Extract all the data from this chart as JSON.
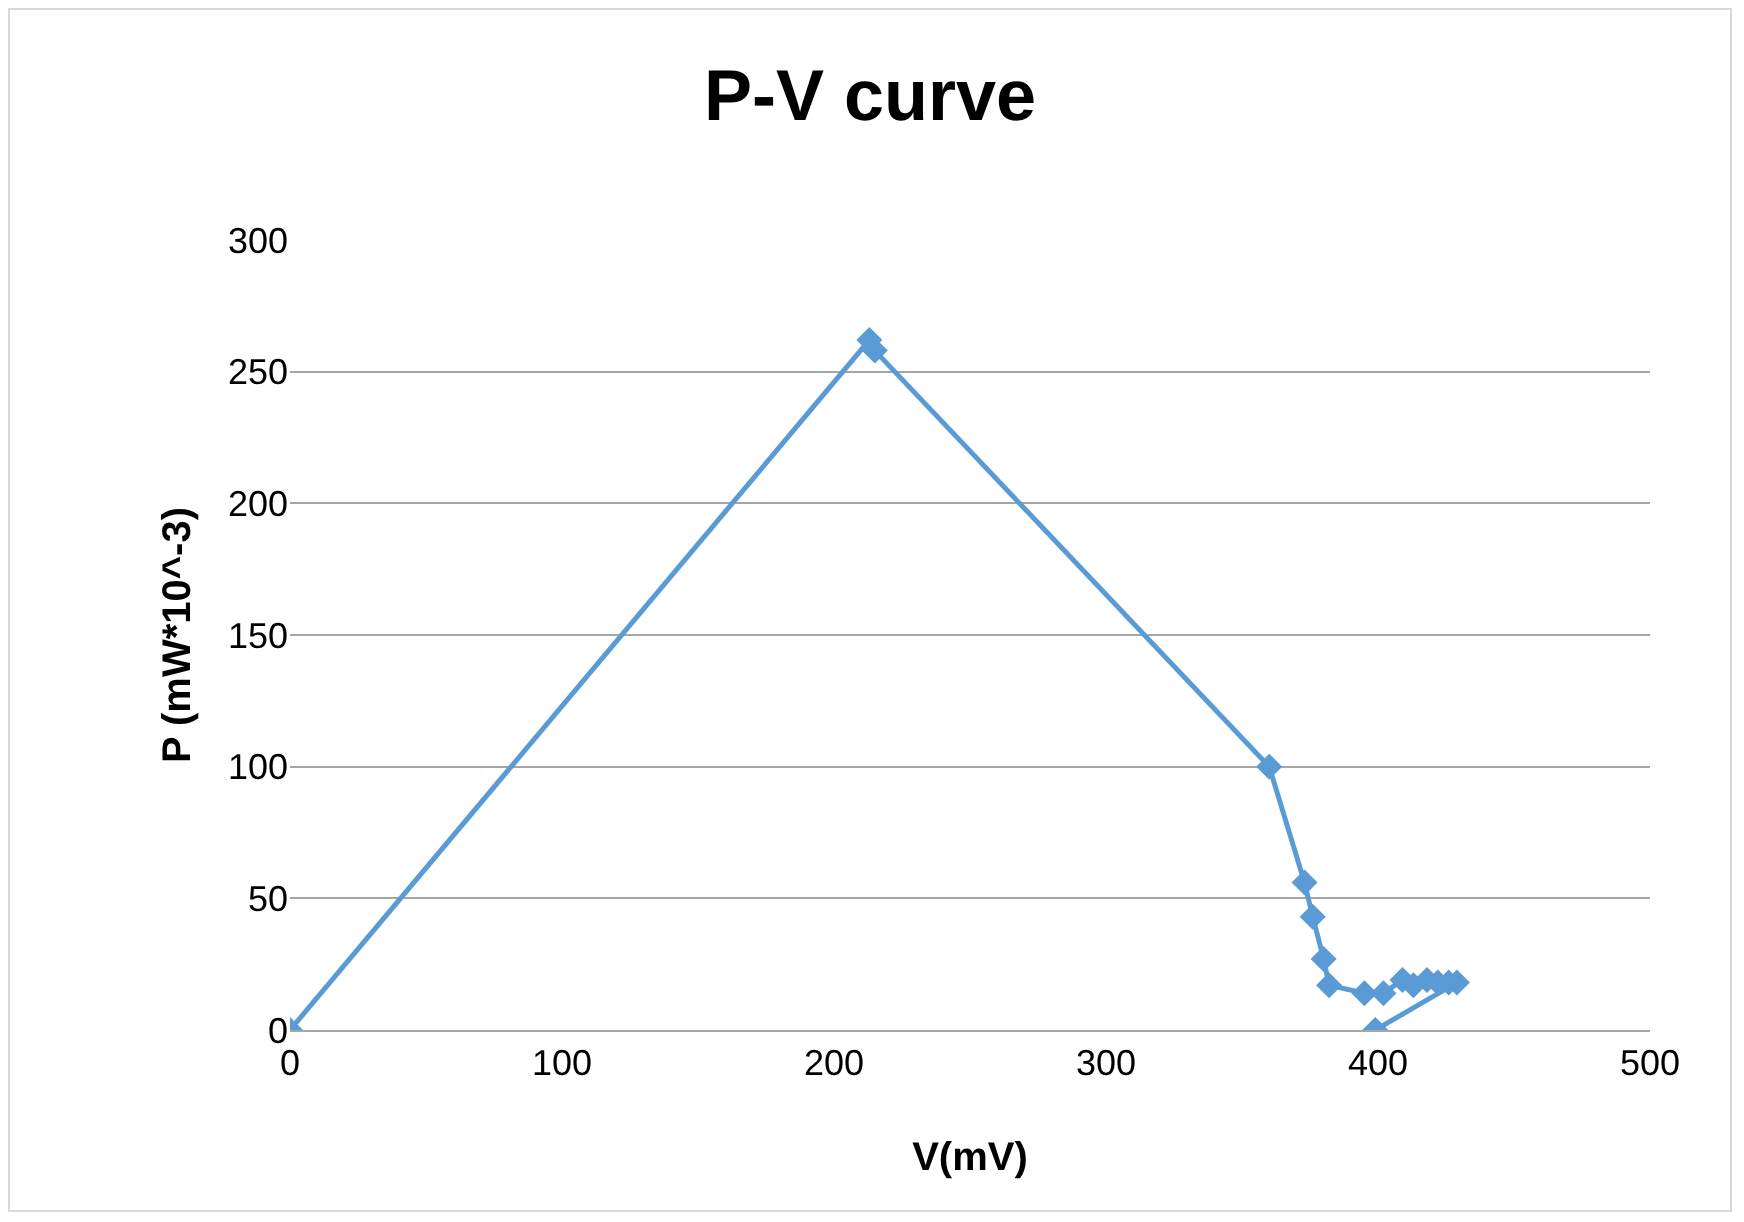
{
  "chart_data": {
    "type": "line",
    "title": "P-V curve",
    "xlabel": "V(mV)",
    "ylabel": "P (mW*10^-3)",
    "series": [
      {
        "color": "#5b9bd5",
        "x": [
          0,
          213,
          215,
          360,
          373,
          376,
          380,
          382,
          395,
          402,
          409,
          413,
          418,
          422,
          426,
          429,
          399
        ],
        "values": [
          0,
          262,
          258,
          100,
          56,
          43,
          27,
          17,
          14,
          14,
          19,
          17,
          19,
          18,
          18,
          18,
          0
        ]
      }
    ],
    "xlim": [
      0,
      500
    ],
    "xticks": [
      0,
      100,
      200,
      300,
      400,
      500
    ],
    "ylim": [
      0,
      300
    ],
    "yticks": [
      0,
      50,
      100,
      150,
      200,
      250,
      300
    ],
    "grid": "y",
    "marker": "diamond",
    "line_style": "solid"
  }
}
